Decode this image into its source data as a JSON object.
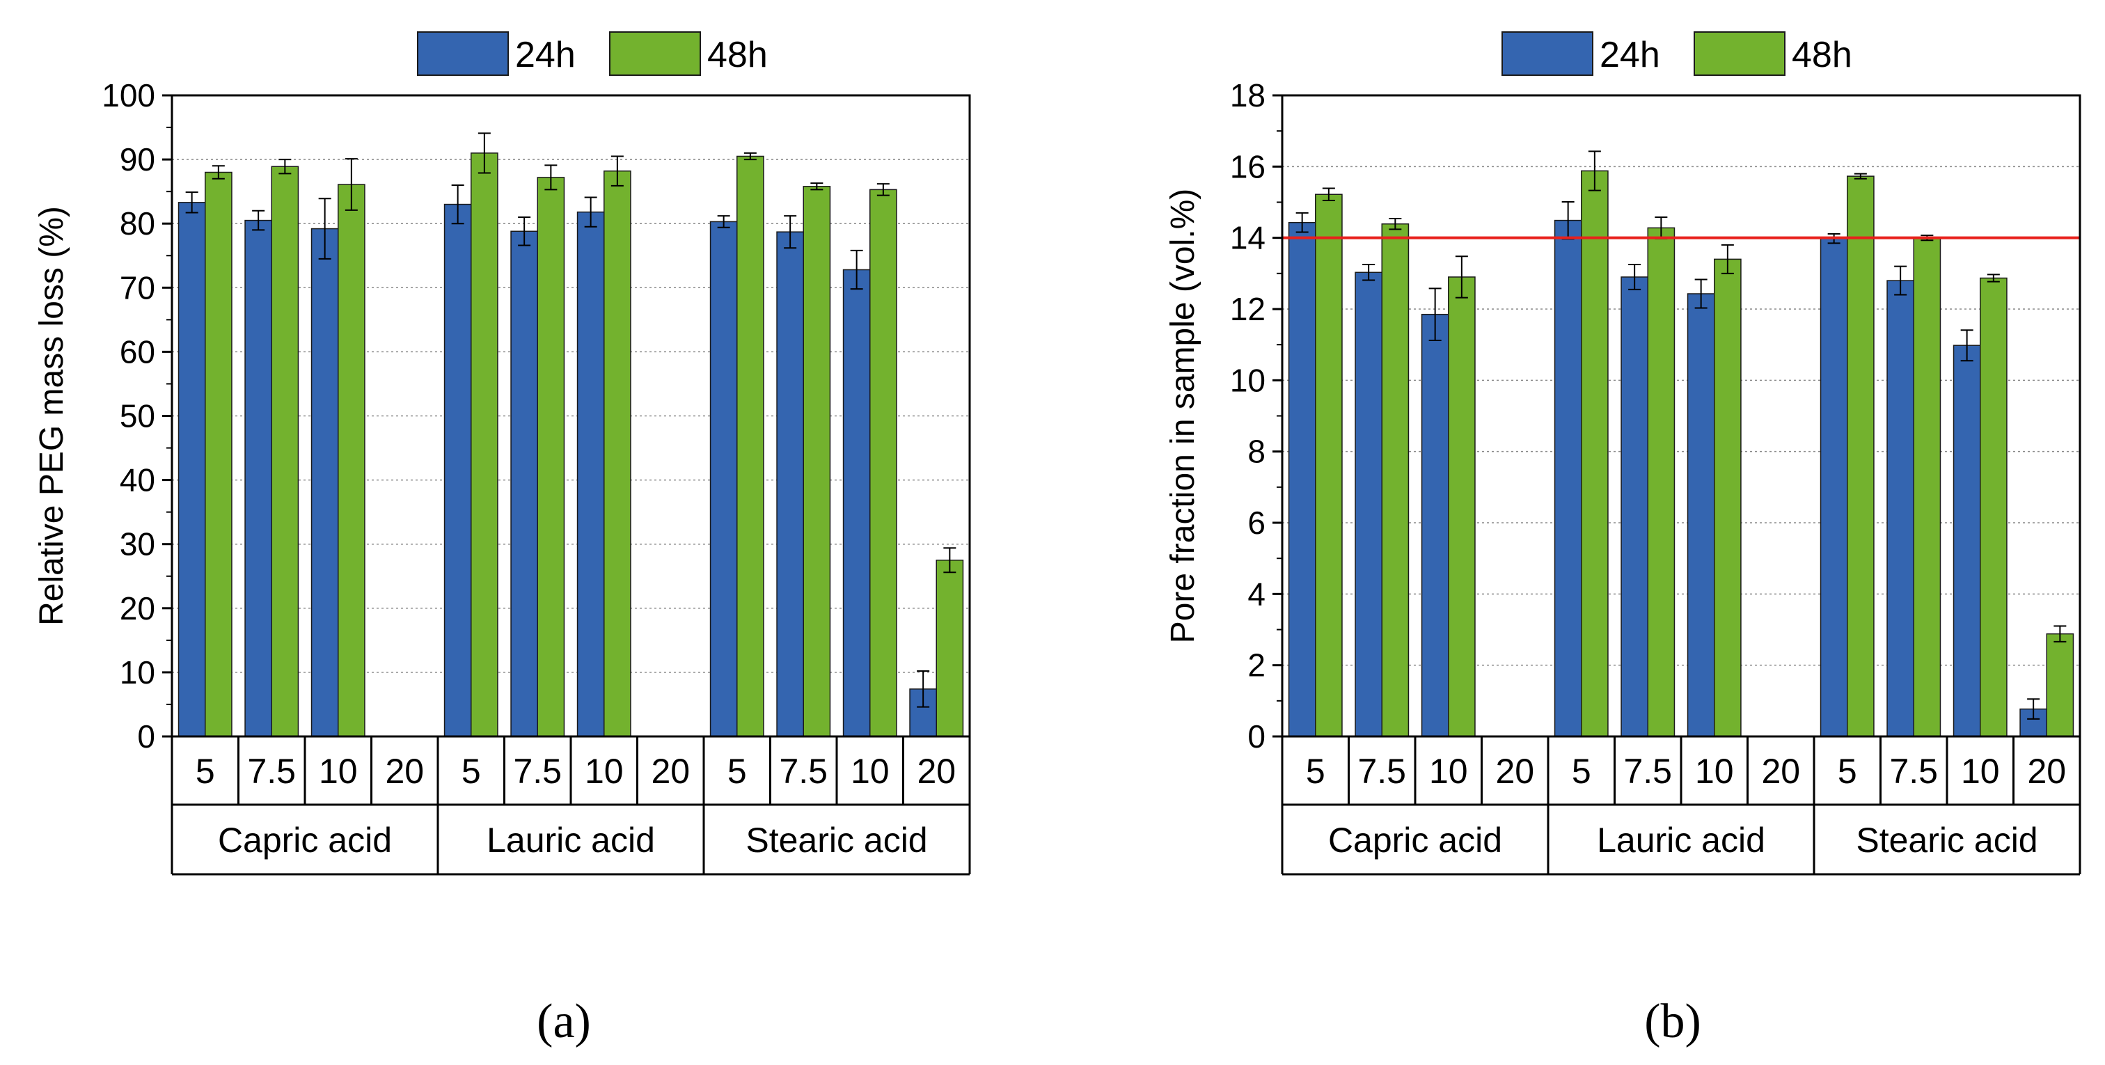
{
  "colors": {
    "series_24h": "#3465b0",
    "series_48h": "#73b22e",
    "reference_line": "#e8211c"
  },
  "chart_data": [
    {
      "type": "bar",
      "caption": "(a)",
      "ylabel": "Relative PEG mass loss (%)",
      "ylim": [
        0,
        100
      ],
      "yticks": [
        0,
        10,
        20,
        30,
        40,
        50,
        60,
        70,
        80,
        90,
        100
      ],
      "ytick_labels": [
        "0",
        "10",
        "20",
        "30",
        "40",
        "50",
        "60",
        "70",
        "80",
        "90",
        "100"
      ],
      "grid": "horizontal dotted",
      "legend": "top",
      "groups": [
        "Capric acid",
        "Lauric acid",
        "Stearic acid"
      ],
      "categories": [
        "5",
        "7.5",
        "10",
        "20",
        "5",
        "7.5",
        "10",
        "20",
        "5",
        "7.5",
        "10",
        "20"
      ],
      "series": [
        {
          "name": "24h",
          "values": [
            83.3,
            80.5,
            79.2,
            null,
            83.0,
            78.8,
            81.8,
            null,
            80.3,
            78.7,
            72.8,
            7.4
          ],
          "errors": [
            1.6,
            1.5,
            4.7,
            null,
            3.0,
            2.2,
            2.3,
            null,
            0.9,
            2.5,
            3.0,
            2.8
          ]
        },
        {
          "name": "48h",
          "values": [
            88.0,
            88.9,
            86.1,
            null,
            91.0,
            87.2,
            88.2,
            null,
            90.5,
            85.8,
            85.3,
            27.5
          ],
          "errors": [
            1.0,
            1.1,
            4.0,
            null,
            3.1,
            1.9,
            2.3,
            null,
            0.5,
            0.5,
            0.9,
            1.9
          ]
        }
      ]
    },
    {
      "type": "bar",
      "caption": "(b)",
      "ylabel": "Pore fraction in sample (vol.%)",
      "ylim": [
        0,
        18
      ],
      "yticks": [
        0,
        2,
        4,
        6,
        8,
        10,
        12,
        14,
        16,
        18
      ],
      "ytick_labels": [
        "0",
        "2",
        "4",
        "6",
        "8",
        "10",
        "12",
        "14",
        "16",
        "18"
      ],
      "grid": "horizontal dotted",
      "legend": "top",
      "reference_line_y": 14,
      "groups": [
        "Capric acid",
        "Lauric acid",
        "Stearic acid"
      ],
      "categories": [
        "5",
        "7.5",
        "10",
        "20",
        "5",
        "7.5",
        "10",
        "20",
        "5",
        "7.5",
        "10",
        "20"
      ],
      "series": [
        {
          "name": "24h",
          "values": [
            14.43,
            13.03,
            11.85,
            null,
            14.49,
            12.9,
            12.43,
            null,
            13.98,
            12.8,
            10.98,
            0.77
          ],
          "errors": [
            0.27,
            0.22,
            0.73,
            null,
            0.52,
            0.35,
            0.4,
            null,
            0.13,
            0.4,
            0.43,
            0.28
          ]
        },
        {
          "name": "48h",
          "values": [
            15.22,
            14.39,
            12.9,
            null,
            15.88,
            14.28,
            13.4,
            null,
            15.73,
            14.0,
            12.87,
            2.88
          ],
          "errors": [
            0.17,
            0.15,
            0.58,
            null,
            0.55,
            0.3,
            0.4,
            null,
            0.07,
            0.07,
            0.1,
            0.22
          ]
        }
      ]
    }
  ]
}
